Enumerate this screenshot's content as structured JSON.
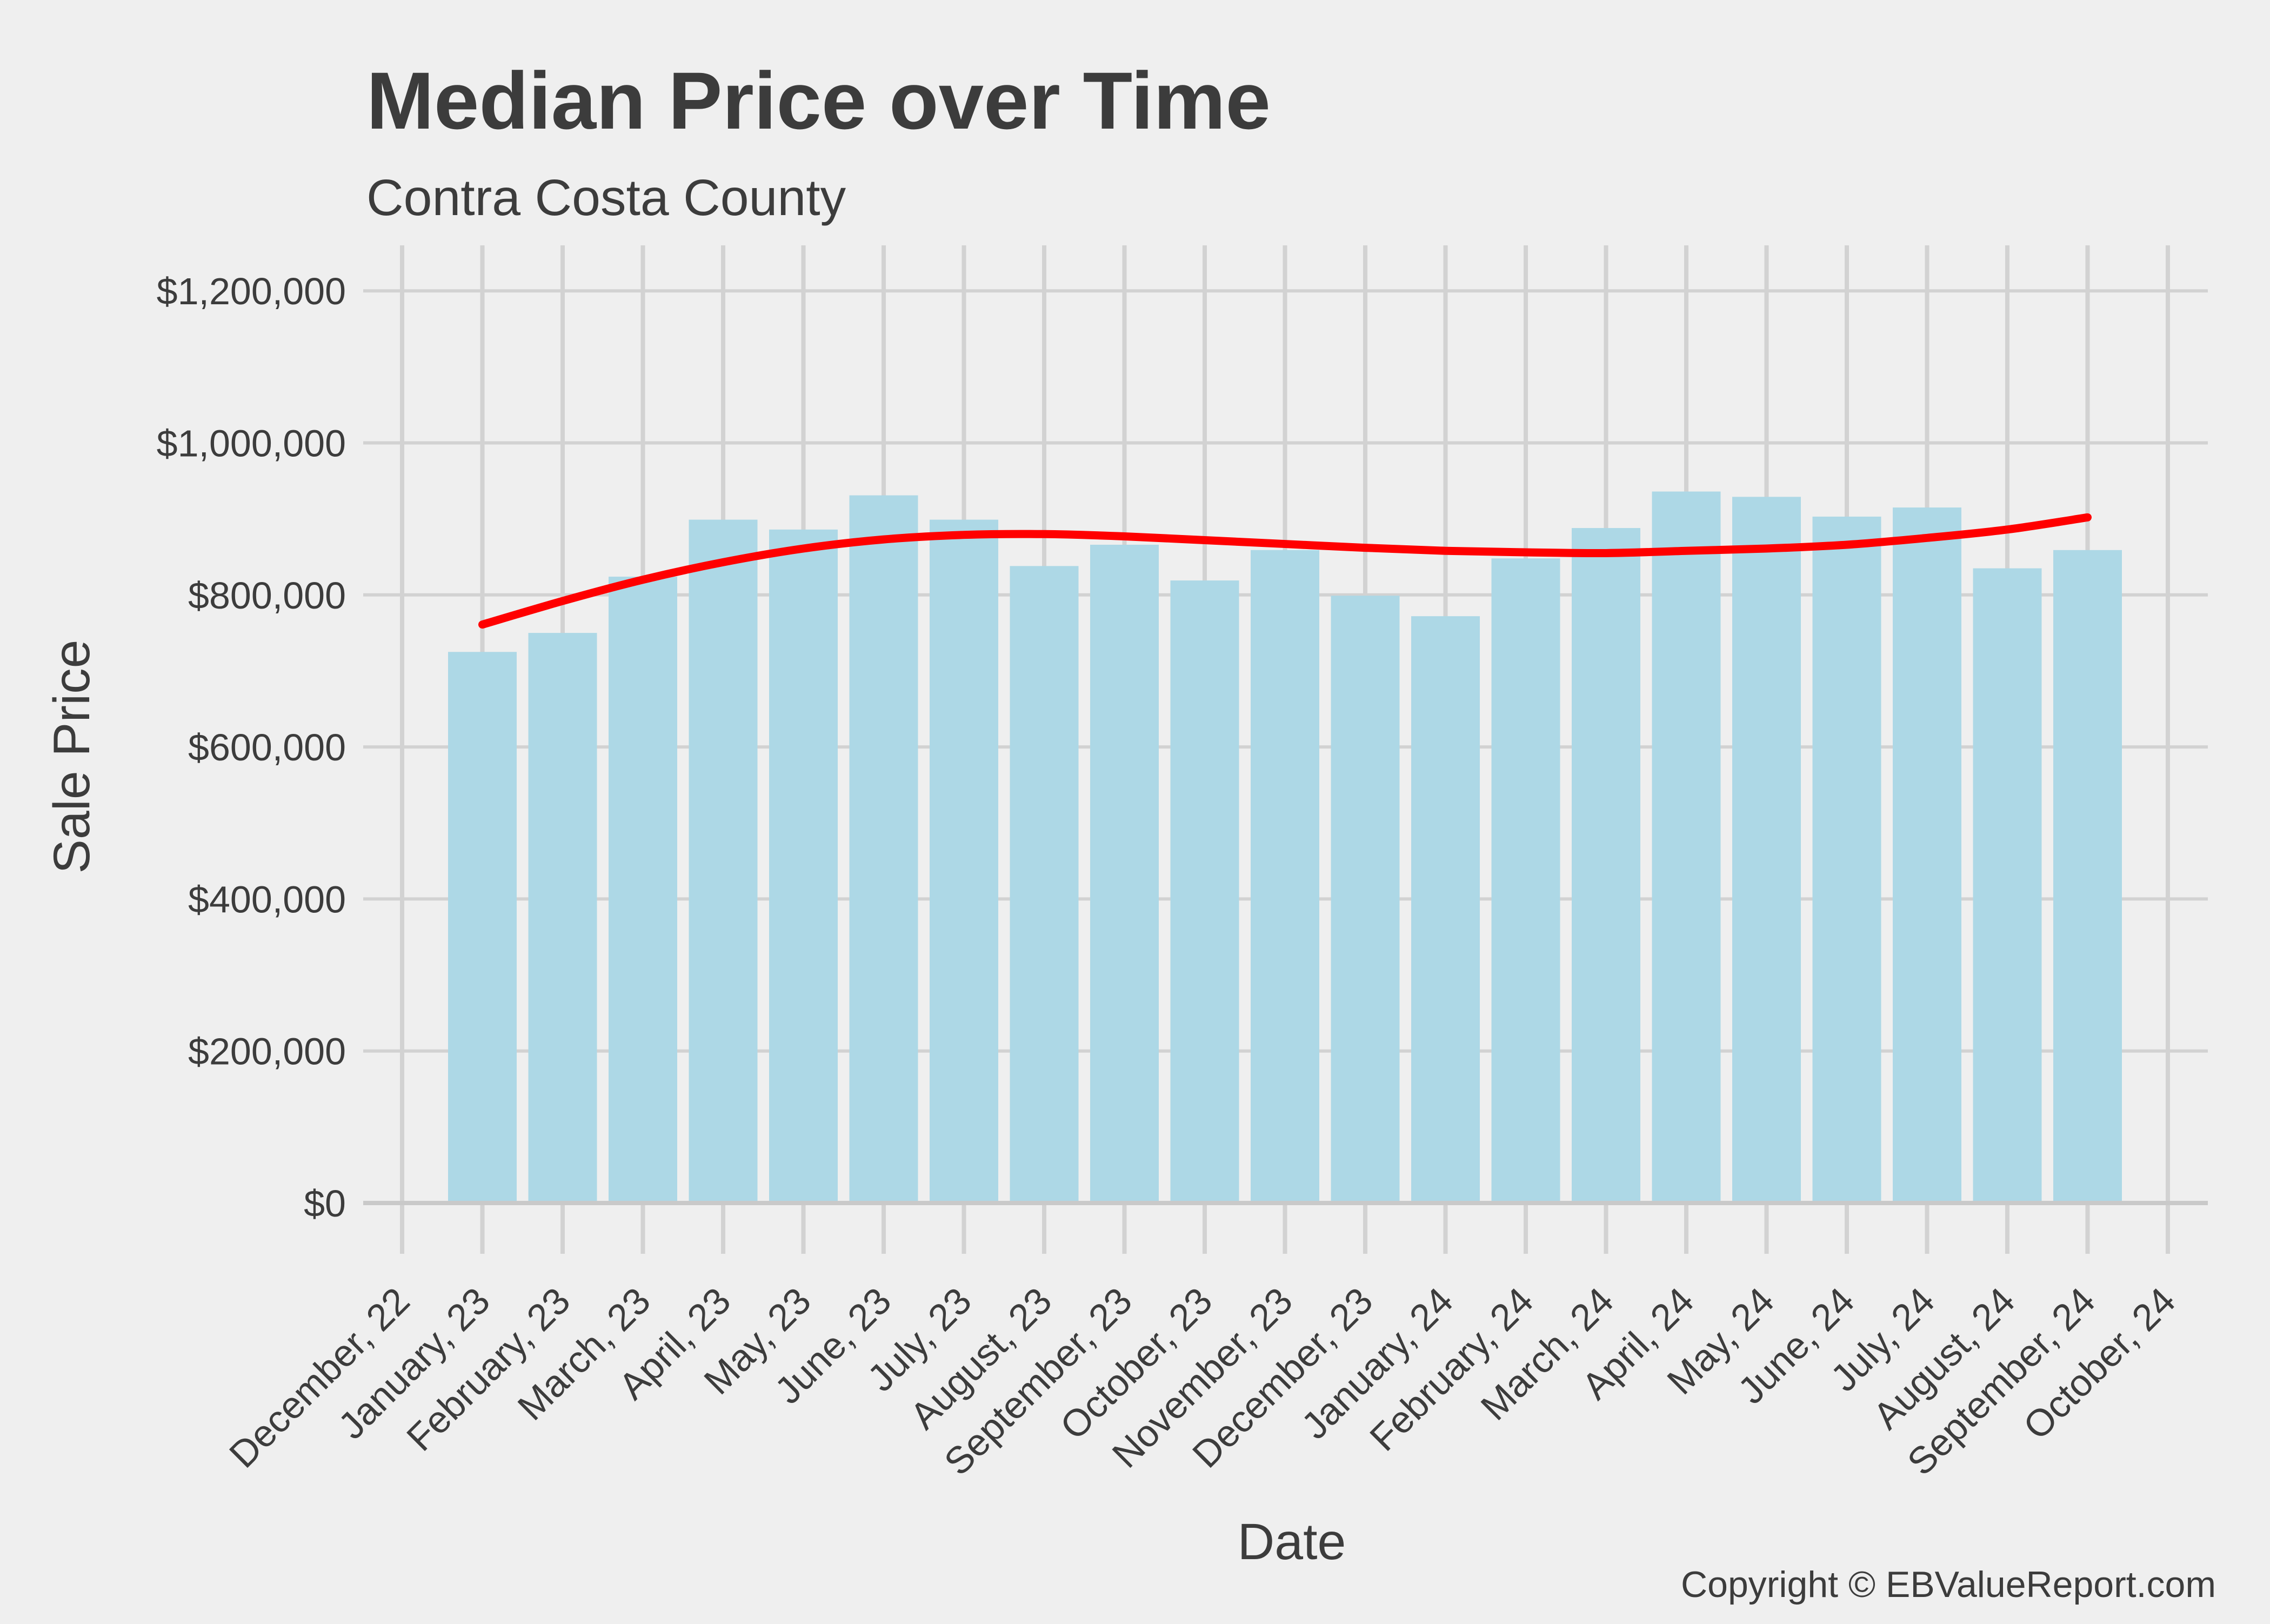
{
  "footer": {
    "copyright": "Copyright © EBValueReport.com"
  },
  "chart_data": {
    "type": "bar",
    "title": "Median Price over Time",
    "subtitle": "Contra Costa County",
    "xlabel": "Date",
    "ylabel": "Sale Price",
    "categories": [
      "December, 22",
      "January, 23",
      "February, 23",
      "March, 23",
      "April, 23",
      "May, 23",
      "June, 23",
      "July, 23",
      "August, 23",
      "September, 23",
      "October, 23",
      "November, 23",
      "December, 23",
      "January, 24",
      "February, 24",
      "March, 24",
      "April, 24",
      "May, 24",
      "June, 24",
      "July, 24",
      "August, 24",
      "September, 24",
      "October, 24"
    ],
    "series": [
      {
        "name": "median-sale-price-bars",
        "type": "bar",
        "color": "#ADD8E6",
        "values": [
          null,
          725000,
          750000,
          824000,
          899000,
          886000,
          931000,
          899000,
          838000,
          866000,
          819000,
          859000,
          799000,
          772000,
          848000,
          888000,
          936000,
          929000,
          903000,
          915000,
          835000,
          859000,
          null
        ]
      },
      {
        "name": "trend-line",
        "type": "line",
        "color": "#FF0000",
        "values": [
          null,
          761000,
          792000,
          820000,
          843000,
          861000,
          873000,
          879000,
          880000,
          877000,
          872000,
          867000,
          862000,
          858000,
          856000,
          855000,
          858000,
          861000,
          866000,
          875000,
          886000,
          902000,
          null
        ]
      }
    ],
    "ylim": [
      0,
      1260000
    ],
    "y_ticks": [
      {
        "value": 0,
        "label": "$0"
      },
      {
        "value": 200000,
        "label": "$200,000"
      },
      {
        "value": 400000,
        "label": "$400,000"
      },
      {
        "value": 600000,
        "label": "$600,000"
      },
      {
        "value": 800000,
        "label": "$800,000"
      },
      {
        "value": 1000000,
        "label": "$1,000,000"
      },
      {
        "value": 1200000,
        "label": "$1,200,000"
      }
    ],
    "grid": "major",
    "legend": "none",
    "colors": {
      "background": "#EFEFEF",
      "gridline": "#D2D2D2",
      "axis": "#C9C9C9",
      "text": "#3C3C3C"
    }
  }
}
